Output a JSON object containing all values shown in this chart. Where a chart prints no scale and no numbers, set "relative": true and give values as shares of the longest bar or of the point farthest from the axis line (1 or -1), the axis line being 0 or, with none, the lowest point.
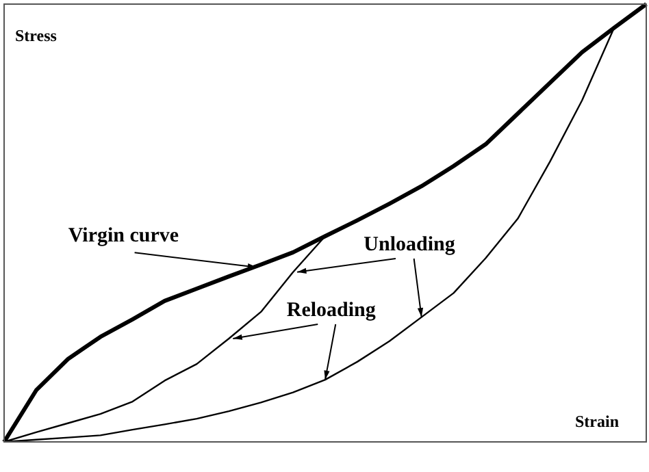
{
  "chart_data": {
    "type": "line",
    "relative": true,
    "xlabel": "Strain",
    "ylabel": "Stress",
    "annotations": [
      "Unloading",
      "Reloading"
    ],
    "categories": [
      null,
      null,
      null,
      null,
      null,
      null,
      null,
      null,
      null,
      null,
      null,
      null,
      null,
      null,
      null,
      null,
      null,
      null,
      null,
      null,
      null
    ],
    "series": [
      {
        "name": "Virgin curve",
        "color": "#000000",
        "values": [
          0,
          0.118,
          0.19,
          0.24,
          0.28,
          0.322,
          0.35,
          0.378,
          0.405,
          0.433,
          0.47,
          0.506,
          0.544,
          0.584,
          0.63,
          0.68,
          0.75,
          0.82,
          0.89,
          0.946,
          1
        ]
      },
      {
        "color": "#000000",
        "values": [
          0,
          0.022,
          0.043,
          0.064,
          0.092,
          0.14,
          0.178,
          0.236,
          0.297,
          0.388,
          0.47,
          null,
          null,
          null,
          null,
          null,
          null,
          null,
          null,
          null,
          null
        ]
      },
      {
        "color": "#000000",
        "values": [
          0,
          0.005,
          0.01,
          0.015,
          0.028,
          0.04,
          0.053,
          0.07,
          0.09,
          0.113,
          0.142,
          0.183,
          0.23,
          0.285,
          0.34,
          0.42,
          0.51,
          0.64,
          0.78,
          0.946,
          null
        ]
      }
    ]
  }
}
